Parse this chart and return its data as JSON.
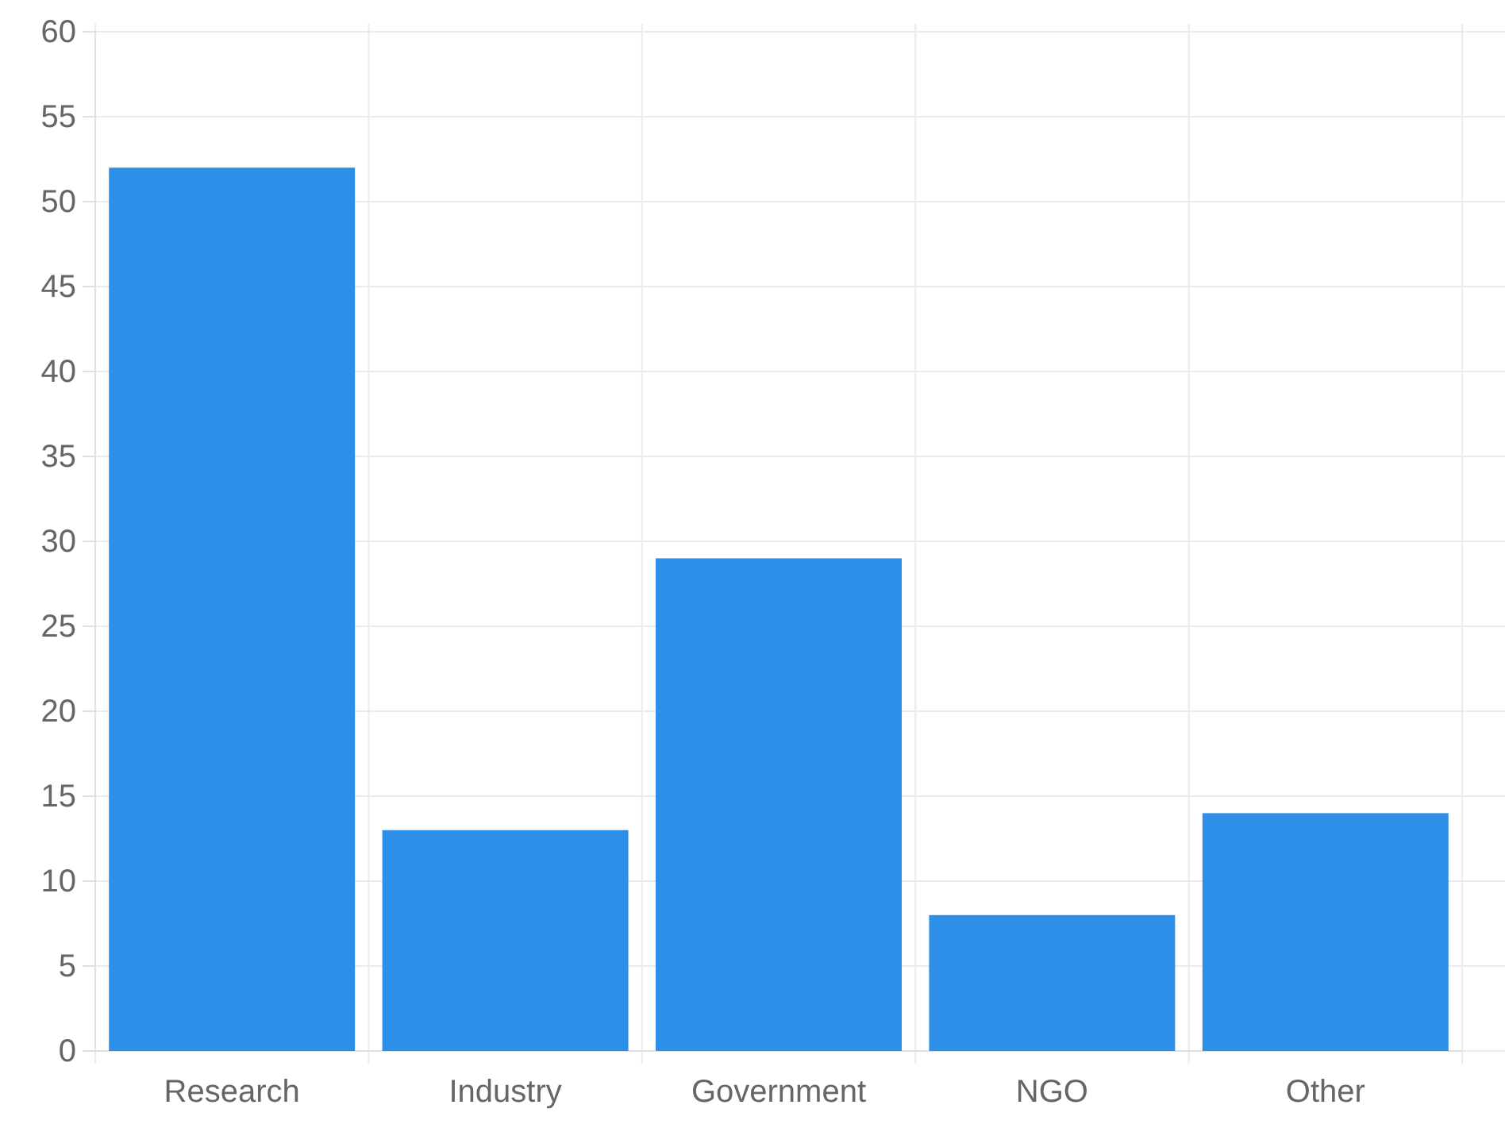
{
  "chart_data": {
    "type": "bar",
    "categories": [
      "Research",
      "Industry",
      "Government",
      "NGO",
      "Other"
    ],
    "values": [
      52,
      13,
      29,
      8,
      14
    ],
    "color": "#2e8fe8",
    "ylim": [
      0,
      60
    ],
    "yticks": [
      0,
      5,
      10,
      15,
      20,
      25,
      30,
      35,
      40,
      45,
      50,
      55,
      60
    ],
    "grid": true
  }
}
